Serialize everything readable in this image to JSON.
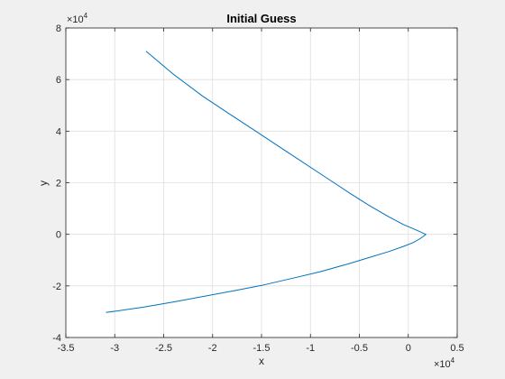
{
  "chart_data": {
    "type": "line",
    "title": "Initial Guess",
    "xlabel": "x",
    "ylabel": "y",
    "x_multiplier": "×10",
    "x_exponent": "4",
    "y_multiplier": "×10",
    "y_exponent": "4",
    "xlim": [
      -3.5,
      0.5
    ],
    "ylim": [
      -4,
      8
    ],
    "x_ticks": [
      -3.5,
      -3,
      -2.5,
      -2,
      -1.5,
      -1,
      -0.5,
      0,
      0.5
    ],
    "x_tick_labels": [
      "-3.5",
      "-3",
      "-2.5",
      "-2",
      "-1.5",
      "-1",
      "-0.5",
      "0",
      "0.5"
    ],
    "y_ticks": [
      -4,
      -2,
      0,
      2,
      4,
      6,
      8
    ],
    "y_tick_labels": [
      "-4",
      "-2",
      "0",
      "2",
      "4",
      "6",
      "8"
    ],
    "grid": true,
    "series": [
      {
        "color": "#0072bd",
        "x": [
          -2.68,
          -2.4,
          -2.1,
          -1.8,
          -1.5,
          -1.2,
          -0.9,
          -0.6,
          -0.4,
          -0.2,
          -0.05,
          0.05,
          0.12,
          0.16,
          0.18,
          0.16,
          0.12,
          0.05,
          -0.05,
          -0.2,
          -0.4,
          -0.6,
          -0.9,
          -1.2,
          -1.5,
          -1.8,
          -2.1,
          -2.4,
          -2.7,
          -3.09
        ],
        "y": [
          7.1,
          6.2,
          5.35,
          4.6,
          3.85,
          3.1,
          2.35,
          1.6,
          1.12,
          0.68,
          0.38,
          0.22,
          0.1,
          0.03,
          0.0,
          -0.06,
          -0.17,
          -0.32,
          -0.47,
          -0.67,
          -0.9,
          -1.13,
          -1.45,
          -1.72,
          -1.98,
          -2.2,
          -2.41,
          -2.62,
          -2.82,
          -3.03
        ]
      }
    ]
  }
}
